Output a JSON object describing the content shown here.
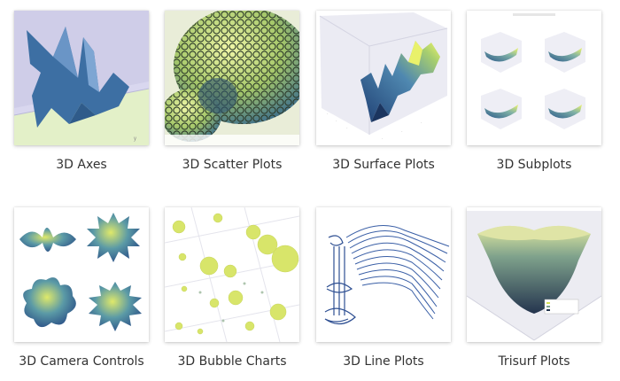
{
  "gallery": {
    "items": [
      {
        "label": "3D Axes",
        "thumbnail": "3d-axes-thumbnail"
      },
      {
        "label": "3D Scatter Plots",
        "thumbnail": "3d-scatter-thumbnail"
      },
      {
        "label": "3D Surface Plots",
        "thumbnail": "3d-surface-thumbnail"
      },
      {
        "label": "3D Subplots",
        "thumbnail": "3d-subplots-thumbnail"
      },
      {
        "label": "3D Camera Controls",
        "thumbnail": "3d-camera-controls-thumbnail"
      },
      {
        "label": "3D Bubble Charts",
        "thumbnail": "3d-bubble-thumbnail"
      },
      {
        "label": "3D Line Plots",
        "thumbnail": "3d-line-thumbnail"
      },
      {
        "label": "Trisurf Plots",
        "thumbnail": "trisurf-thumbnail"
      }
    ]
  },
  "colors": {
    "label_text": "#333333",
    "card_shadow": "#bdbdbd",
    "blue": "#3d6fa3",
    "yellow_green": "#d4e157",
    "lavender": "#d9d7ef",
    "pale_green": "#e3f0c8"
  }
}
